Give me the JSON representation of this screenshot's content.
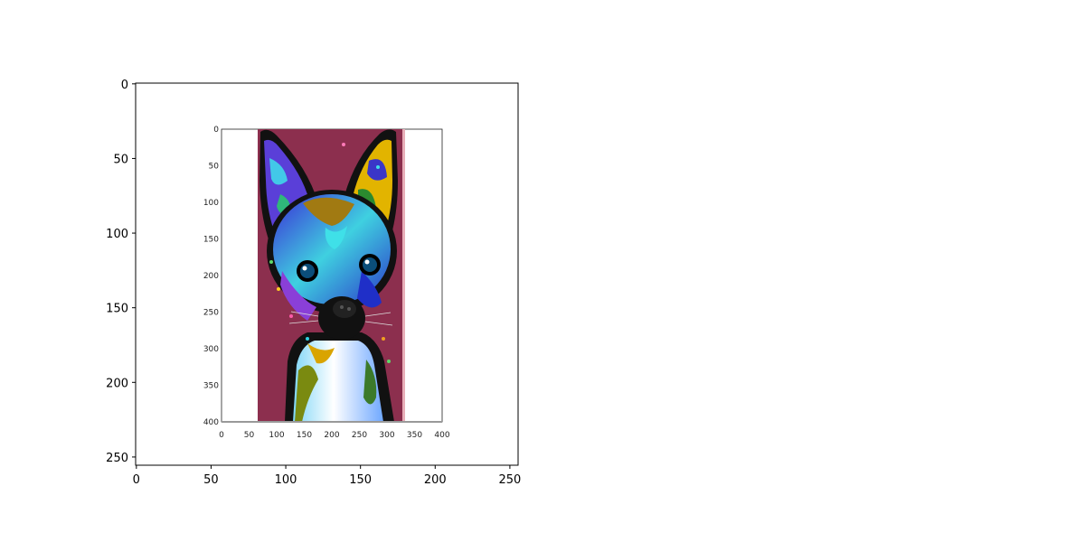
{
  "chart_data": {
    "type": "image",
    "outer_axes": {
      "xlim": [
        -0.5,
        255.5
      ],
      "ylim": [
        255.5,
        -0.5
      ],
      "xticks": [
        0,
        50,
        100,
        150,
        200,
        250
      ],
      "yticks": [
        0,
        50,
        100,
        150,
        200,
        250
      ],
      "xtick_labels": [
        "0",
        "50",
        "100",
        "150",
        "200",
        "250"
      ],
      "ytick_labels": [
        "0",
        "50",
        "100",
        "150",
        "200",
        "250"
      ],
      "title": "",
      "xlabel": "",
      "ylabel": ""
    },
    "inner_image": {
      "description_tag": "embedded-plot-screenshot",
      "xlim": [
        0,
        400
      ],
      "ylim": [
        400,
        0
      ],
      "xtick_labels": [
        "0",
        "50",
        "100",
        "150",
        "200",
        "250",
        "300",
        "350",
        "400"
      ],
      "ytick_labels": [
        "0",
        "50",
        "100",
        "150",
        "200",
        "250",
        "300",
        "350",
        "400"
      ],
      "content_icon": "chihuahua-pop-art-icon"
    },
    "grid": false,
    "legend": "none"
  },
  "colors": {
    "background": "#ffffff",
    "axis": "#000000",
    "image_backdrop": "#8c2f4e",
    "image_backdrop_light": "#e8aeb8"
  }
}
